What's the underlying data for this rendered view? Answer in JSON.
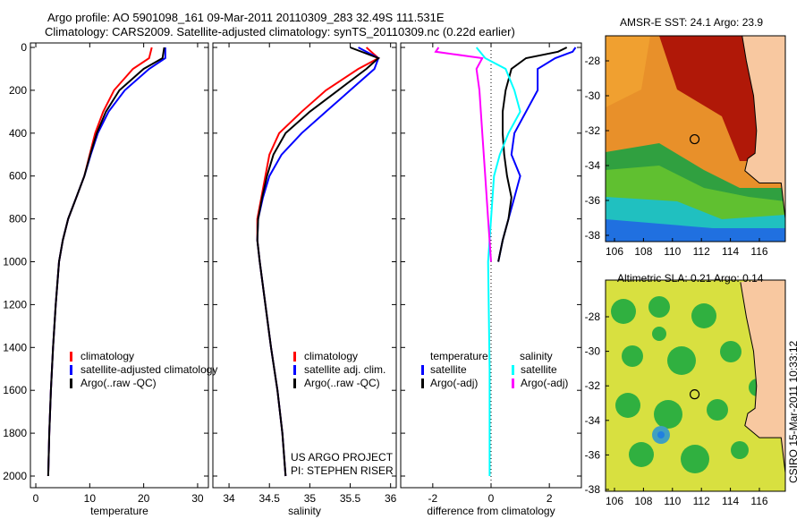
{
  "header": {
    "line1": "Argo profile: AO 5901098_161 09-Mar-2011 20110309_283 32.49S 111.531E",
    "line2": "Climatology: CARS2009. Satellite-adjusted climatology: synTS_20110309.nc (0.22d earlier)"
  },
  "credit": "CSIRO 15-Mar-2011 10:33:12",
  "project": {
    "line1": "US ARGO PROJECT",
    "line2": "PI: STEPHEN RISER"
  },
  "chart_data": [
    {
      "type": "line",
      "xlabel": "temperature",
      "xlim": [
        -1,
        32
      ],
      "ylim": [
        2050,
        0
      ],
      "xticks": [
        0,
        10,
        20,
        30
      ],
      "yticks": [
        0,
        200,
        400,
        600,
        800,
        1000,
        1200,
        1400,
        1600,
        1800,
        2000
      ],
      "legend": [
        "climatology",
        "satellite-adjusted climatology",
        "Argo(..raw -QC)"
      ],
      "depth": [
        0,
        50,
        100,
        200,
        300,
        400,
        500,
        600,
        700,
        800,
        900,
        1000,
        1200,
        1400,
        1600,
        1800,
        2000
      ],
      "series": [
        {
          "name": "climatology",
          "color": "#ff0000",
          "values": [
            21.5,
            21,
            18,
            14.5,
            12.5,
            11,
            10,
            9,
            7.5,
            6,
            5,
            4.3,
            3.7,
            3.2,
            2.8,
            2.5,
            2.3
          ]
        },
        {
          "name": "satellite-adjusted climatology",
          "color": "#0000ff",
          "values": [
            24,
            24,
            21,
            16.5,
            13.5,
            11.5,
            10.2,
            9,
            7.5,
            6,
            5,
            4.3,
            3.7,
            3.2,
            2.8,
            2.5,
            2.3
          ]
        },
        {
          "name": "Argo(..raw -QC)",
          "color": "#000000",
          "values": [
            23.8,
            23.5,
            20,
            15.5,
            13,
            11.3,
            10.1,
            9,
            7.5,
            6,
            5,
            4.3,
            3.7,
            3.2,
            2.8,
            2.5,
            2.3
          ]
        }
      ]
    },
    {
      "type": "line",
      "xlabel": "salinity",
      "xlim": [
        33.8,
        36.07
      ],
      "ylim": [
        2050,
        0
      ],
      "xticks": [
        34,
        34.5,
        35,
        35.5,
        36
      ],
      "legend": [
        "climatology",
        "satellite adj. clim.",
        "Argo(..raw -QC)"
      ],
      "depth": [
        0,
        50,
        100,
        200,
        300,
        400,
        500,
        600,
        700,
        800,
        900,
        1000,
        1200,
        1400,
        1600,
        1800,
        2000
      ],
      "series": [
        {
          "name": "climatology",
          "color": "#ff0000",
          "values": [
            35.7,
            35.85,
            35.6,
            35.2,
            34.9,
            34.62,
            34.5,
            34.45,
            34.4,
            34.35,
            34.35,
            34.38,
            34.45,
            34.52,
            34.6,
            34.66,
            34.7
          ]
        },
        {
          "name": "satellite adj. clim.",
          "color": "#0000ff",
          "values": [
            35.6,
            35.85,
            35.8,
            35.5,
            35.2,
            34.9,
            34.65,
            34.5,
            34.42,
            34.36,
            34.35,
            34.38,
            34.45,
            34.52,
            34.6,
            34.66,
            34.7
          ]
        },
        {
          "name": "Argo(..raw -QC)",
          "color": "#000000",
          "values": [
            35.5,
            35.85,
            35.7,
            35.35,
            35.0,
            34.7,
            34.55,
            34.47,
            34.41,
            34.36,
            34.35,
            34.38,
            34.45,
            34.52,
            34.6,
            34.66,
            34.7
          ]
        }
      ]
    },
    {
      "type": "line",
      "xlabel": "difference from climatology",
      "xlim": [
        -3.1,
        3.1
      ],
      "ylim": [
        2050,
        0
      ],
      "xticks": [
        -2,
        0,
        2
      ],
      "legend_headers": [
        "temperature",
        "salinity"
      ],
      "legend": [
        "satellite",
        "Argo(-adj)",
        "satellite",
        "Argo(-adj)"
      ],
      "series": [
        {
          "name": "temperature satellite",
          "color": "#0000ff",
          "depth": [
            0,
            20,
            50,
            100,
            200,
            300,
            400,
            500,
            600,
            700,
            800,
            900,
            1000
          ],
          "values": [
            2.9,
            2.8,
            2.2,
            1.6,
            1.6,
            1.2,
            0.8,
            0.7,
            1.0,
            0.8,
            0.6,
            0.4,
            0.25
          ]
        },
        {
          "name": "temperature Argo(-adj)",
          "color": "#000000",
          "depth": [
            0,
            20,
            50,
            100,
            200,
            300,
            400,
            500,
            600,
            700,
            800,
            900,
            1000
          ],
          "values": [
            2.6,
            2.3,
            1.2,
            0.7,
            0.5,
            0.4,
            0.4,
            0.45,
            0.55,
            0.7,
            0.6,
            0.4,
            0.25
          ]
        },
        {
          "name": "salinity satellite",
          "color": "#00ffff",
          "depth": [
            0,
            50,
            100,
            200,
            300,
            400,
            500,
            600,
            800,
            1000,
            1500,
            2000
          ],
          "values": [
            -0.5,
            -0.2,
            0.5,
            0.8,
            1.0,
            0.6,
            0.3,
            0.1,
            0,
            -0.1,
            -0.05,
            -0.05
          ]
        },
        {
          "name": "salinity Argo(-adj)",
          "color": "#ff00ff",
          "depth": [
            0,
            20,
            50,
            100,
            200,
            400,
            600,
            800,
            1000
          ],
          "values": [
            -1.8,
            -1.9,
            -0.3,
            -0.5,
            -0.4,
            -0.3,
            -0.2,
            -0.1,
            0
          ]
        }
      ]
    }
  ],
  "maps": [
    {
      "title": "AMSR-E SST: 24.1 Argo: 23.9",
      "lon_ticks": [
        106,
        108,
        110,
        112,
        114,
        116
      ],
      "lat_ticks": [
        -28,
        -30,
        -32,
        -34,
        -36,
        -38
      ],
      "float_lon": 111.53,
      "float_lat": -32.49
    },
    {
      "title": "Altimetric SLA: 0.21 Argo: 0.14",
      "lon_ticks": [
        106,
        108,
        110,
        112,
        114,
        116
      ],
      "lat_ticks": [
        -28,
        -30,
        -32,
        -34,
        -36,
        -38
      ],
      "float_lon": 111.53,
      "float_lat": -32.49
    }
  ]
}
